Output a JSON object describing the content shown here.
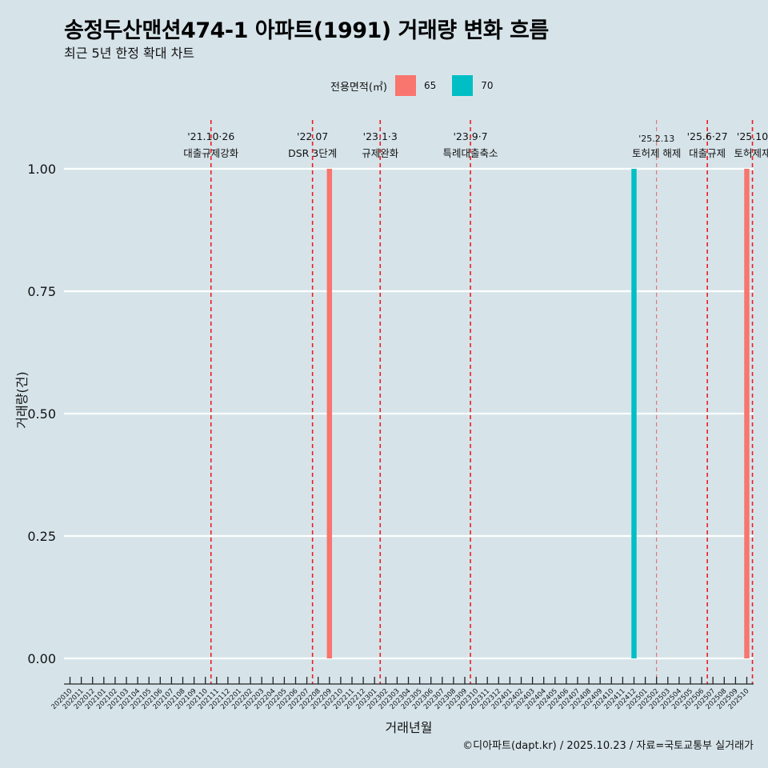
{
  "chart_data": {
    "type": "bar",
    "title": "송정두산맨션474-1 아파트(1991) 거래량 변화 흐름",
    "subtitle": "최근 5년 한정 확대 차트",
    "xlabel": "거래년월",
    "ylabel": "거래량(건)",
    "ylim": [
      0,
      1.0
    ],
    "yticks": [
      "0.00",
      "0.25",
      "0.50",
      "0.75",
      "1.00"
    ],
    "legend": {
      "title": "전용면적(㎡)",
      "placement": "top",
      "entries": [
        {
          "label": "65",
          "color": "#f8766d"
        },
        {
          "label": "70",
          "color": "#00bfc4"
        }
      ]
    },
    "categories": [
      "202010",
      "202011",
      "202012",
      "202101",
      "202102",
      "202103",
      "202104",
      "202105",
      "202106",
      "202107",
      "202108",
      "202109",
      "202110",
      "202111",
      "202112",
      "202201",
      "202202",
      "202203",
      "202204",
      "202205",
      "202206",
      "202207",
      "202208",
      "202209",
      "202210",
      "202211",
      "202212",
      "202301",
      "202302",
      "202303",
      "202304",
      "202305",
      "202306",
      "202307",
      "202308",
      "202309",
      "202310",
      "202311",
      "202312",
      "202401",
      "202402",
      "202403",
      "202404",
      "202405",
      "202406",
      "202407",
      "202408",
      "202409",
      "202410",
      "202411",
      "202412",
      "202501",
      "202502",
      "202503",
      "202504",
      "202505",
      "202506",
      "202507",
      "202508",
      "202509",
      "202510"
    ],
    "series": [
      {
        "name": "65",
        "color": "#f8766d",
        "points": [
          {
            "x": "202209",
            "y": 1
          },
          {
            "x": "202510",
            "y": 1
          }
        ]
      },
      {
        "name": "70",
        "color": "#00bfc4",
        "points": [
          {
            "x": "202412",
            "y": 1
          }
        ]
      }
    ],
    "annotations": [
      {
        "x": "202110",
        "offset": 0.5,
        "date": "'21.10·26",
        "label": "대출규제강화",
        "style": "bold",
        "row": 0
      },
      {
        "x": "202207",
        "offset": 0.5,
        "date": "'22.07",
        "label": "DSR 3단계",
        "style": "bold",
        "row": 0
      },
      {
        "x": "202301",
        "offset": 0.5,
        "date": "'23.1·3",
        "label": "규제완화",
        "style": "bold",
        "row": 0
      },
      {
        "x": "202309",
        "offset": 0.5,
        "date": "'23.9·7",
        "label": "특례대출축소",
        "style": "bold",
        "row": 0
      },
      {
        "x": "202502",
        "offset": 0.0,
        "date": "'25.2.13",
        "label": "토허제 해제",
        "style": "thin",
        "row": 1
      },
      {
        "x": "202506",
        "offset": 0.5,
        "date": "'25.6·27",
        "label": "대출규제",
        "style": "bold",
        "row": 0
      },
      {
        "x": "202510",
        "offset": 0.5,
        "date": "'25.10",
        "label": "토허제재",
        "style": "bold",
        "row": 0
      }
    ]
  },
  "caption": "©디아파트(dapt.kr) / 2025.10.23 / 자료=국토교통부 실거래가"
}
